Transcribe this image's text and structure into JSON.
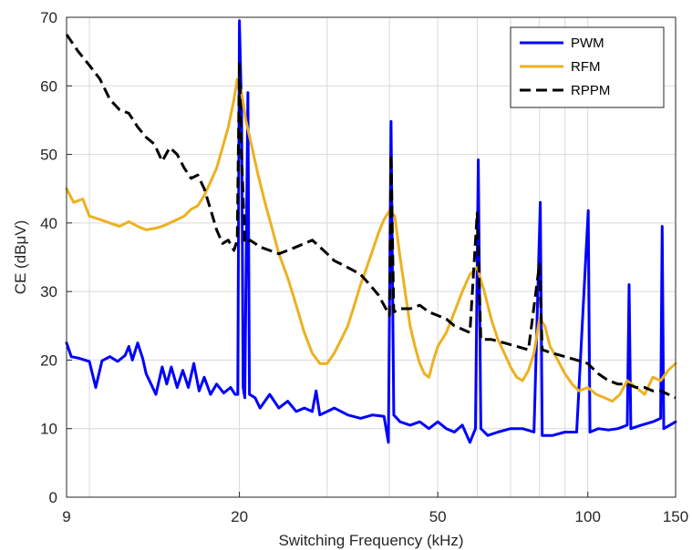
{
  "chart_data": {
    "type": "line",
    "xlabel": "Switching Frequency (kHz)",
    "ylabel": "CE (dBμV)",
    "x_scale": "log",
    "xlim": [
      9,
      150
    ],
    "ylim": [
      0,
      70
    ],
    "x_ticks": [
      9,
      20,
      50,
      100,
      150
    ],
    "x_tick_labels": [
      "9",
      "20",
      "50",
      "100",
      "150"
    ],
    "y_ticks": [
      0,
      10,
      20,
      30,
      40,
      50,
      60,
      70
    ],
    "y_tick_labels": [
      "0",
      "10",
      "20",
      "30",
      "40",
      "50",
      "60",
      "70"
    ],
    "grid": true,
    "legend_position": "top-right",
    "series": [
      {
        "name": "PWM",
        "color": "#0000ff",
        "style": "solid",
        "points": [
          [
            9,
            22.5
          ],
          [
            9.2,
            20.5
          ],
          [
            9.5,
            20.3
          ],
          [
            10,
            19.8
          ],
          [
            10.3,
            16
          ],
          [
            10.6,
            19.9
          ],
          [
            11,
            20.5
          ],
          [
            11.4,
            19.8
          ],
          [
            11.8,
            20.7
          ],
          [
            12,
            22
          ],
          [
            12.2,
            20
          ],
          [
            12.5,
            22.5
          ],
          [
            12.8,
            20.2
          ],
          [
            13,
            18
          ],
          [
            13.3,
            16.5
          ],
          [
            13.6,
            15
          ],
          [
            14,
            19
          ],
          [
            14.3,
            16.5
          ],
          [
            14.6,
            19
          ],
          [
            15,
            16
          ],
          [
            15.4,
            18.5
          ],
          [
            15.8,
            16
          ],
          [
            16.2,
            19.5
          ],
          [
            16.6,
            15.5
          ],
          [
            17,
            17.5
          ],
          [
            17.5,
            15
          ],
          [
            18,
            16.5
          ],
          [
            18.6,
            15.2
          ],
          [
            19.2,
            16
          ],
          [
            19.6,
            15
          ],
          [
            19.85,
            15
          ],
          [
            20,
            69.5
          ],
          [
            20.2,
            56
          ],
          [
            20.35,
            16
          ],
          [
            20.5,
            14.5
          ],
          [
            20.8,
            59
          ],
          [
            20.95,
            15
          ],
          [
            21.5,
            14.5
          ],
          [
            22,
            13
          ],
          [
            23,
            15
          ],
          [
            24,
            13
          ],
          [
            25,
            14
          ],
          [
            26,
            12.5
          ],
          [
            27,
            13
          ],
          [
            28,
            12.5
          ],
          [
            28.5,
            15.5
          ],
          [
            29,
            12
          ],
          [
            30,
            12.5
          ],
          [
            31,
            13
          ],
          [
            33,
            12
          ],
          [
            35,
            11.5
          ],
          [
            37,
            12
          ],
          [
            39,
            11.8
          ],
          [
            39.8,
            8
          ],
          [
            40.3,
            54.8
          ],
          [
            40.8,
            12
          ],
          [
            42,
            11
          ],
          [
            44,
            10.5
          ],
          [
            46,
            11
          ],
          [
            48,
            10
          ],
          [
            50,
            11
          ],
          [
            52,
            10
          ],
          [
            54,
            9.5
          ],
          [
            56,
            10.5
          ],
          [
            58,
            8
          ],
          [
            59.5,
            10
          ],
          [
            60.3,
            49.2
          ],
          [
            61,
            10
          ],
          [
            63,
            9
          ],
          [
            66,
            9.5
          ],
          [
            70,
            10
          ],
          [
            74,
            10
          ],
          [
            78,
            9.5
          ],
          [
            80.3,
            43
          ],
          [
            81,
            9
          ],
          [
            85,
            9
          ],
          [
            90,
            9.5
          ],
          [
            95,
            9.5
          ],
          [
            100.2,
            41.8
          ],
          [
            101,
            9.5
          ],
          [
            105,
            10
          ],
          [
            110,
            9.8
          ],
          [
            115,
            10
          ],
          [
            120,
            10.5
          ],
          [
            121,
            31
          ],
          [
            122,
            10
          ],
          [
            128,
            10.5
          ],
          [
            135,
            11
          ],
          [
            140,
            11.5
          ],
          [
            141,
            39.5
          ],
          [
            142,
            10
          ],
          [
            146,
            10.5
          ],
          [
            150,
            11
          ]
        ]
      },
      {
        "name": "RFM",
        "color": "#edb120",
        "style": "solid",
        "points": [
          [
            9,
            45
          ],
          [
            9.3,
            43
          ],
          [
            9.7,
            43.5
          ],
          [
            10,
            41
          ],
          [
            10.5,
            40.5
          ],
          [
            11,
            40
          ],
          [
            11.5,
            39.5
          ],
          [
            12,
            40.2
          ],
          [
            12.5,
            39.5
          ],
          [
            13,
            39
          ],
          [
            13.5,
            39.2
          ],
          [
            14,
            39.5
          ],
          [
            14.5,
            40
          ],
          [
            15,
            40.5
          ],
          [
            15.5,
            41
          ],
          [
            16,
            42
          ],
          [
            16.5,
            42.5
          ],
          [
            17,
            44
          ],
          [
            17.5,
            46
          ],
          [
            18,
            48
          ],
          [
            18.5,
            51
          ],
          [
            19,
            54
          ],
          [
            19.5,
            58
          ],
          [
            19.8,
            61
          ],
          [
            20.2,
            59
          ],
          [
            20.6,
            55
          ],
          [
            21.2,
            51
          ],
          [
            21.8,
            47
          ],
          [
            22.5,
            43
          ],
          [
            23.2,
            39.5
          ],
          [
            24,
            35.5
          ],
          [
            25,
            32
          ],
          [
            26,
            28
          ],
          [
            27,
            24
          ],
          [
            28,
            21
          ],
          [
            29,
            19.5
          ],
          [
            30,
            19.5
          ],
          [
            31,
            21
          ],
          [
            32,
            23
          ],
          [
            33,
            25
          ],
          [
            34,
            28
          ],
          [
            35,
            31
          ],
          [
            36,
            33.5
          ],
          [
            37,
            36
          ],
          [
            38,
            38.5
          ],
          [
            39,
            40.5
          ],
          [
            40,
            41.8
          ],
          [
            41,
            41
          ],
          [
            42,
            35
          ],
          [
            43,
            30
          ],
          [
            44,
            25
          ],
          [
            45,
            22
          ],
          [
            46,
            19.5
          ],
          [
            47,
            18
          ],
          [
            48,
            17.5
          ],
          [
            49,
            20
          ],
          [
            50,
            22
          ],
          [
            52,
            24
          ],
          [
            54,
            27
          ],
          [
            56,
            30
          ],
          [
            58,
            32.5
          ],
          [
            60,
            33.5
          ],
          [
            62,
            30
          ],
          [
            64,
            26
          ],
          [
            66,
            23
          ],
          [
            68,
            21
          ],
          [
            70,
            19
          ],
          [
            72,
            17.5
          ],
          [
            74,
            17
          ],
          [
            76,
            18.5
          ],
          [
            78,
            21
          ],
          [
            80,
            26
          ],
          [
            82,
            25
          ],
          [
            84,
            22
          ],
          [
            87,
            20
          ],
          [
            90,
            18
          ],
          [
            93,
            16.5
          ],
          [
            96,
            15.5
          ],
          [
            100,
            16
          ],
          [
            104,
            15
          ],
          [
            108,
            14.5
          ],
          [
            112,
            14
          ],
          [
            116,
            15
          ],
          [
            120,
            17
          ],
          [
            125,
            16
          ],
          [
            130,
            15
          ],
          [
            135,
            17.5
          ],
          [
            140,
            17
          ],
          [
            145,
            18.5
          ],
          [
            150,
            19.5
          ]
        ]
      },
      {
        "name": "RPPM",
        "color": "#000000",
        "style": "dashed",
        "points": [
          [
            9,
            67.5
          ],
          [
            9.5,
            65
          ],
          [
            10,
            63
          ],
          [
            10.5,
            61
          ],
          [
            11,
            58
          ],
          [
            11.5,
            56.5
          ],
          [
            12,
            56
          ],
          [
            12.5,
            54
          ],
          [
            13,
            52.5
          ],
          [
            13.5,
            51.5
          ],
          [
            14,
            49
          ],
          [
            14.5,
            51
          ],
          [
            15,
            50
          ],
          [
            15.5,
            48
          ],
          [
            16,
            46.5
          ],
          [
            16.5,
            47
          ],
          [
            17,
            45
          ],
          [
            17.5,
            42
          ],
          [
            18,
            39
          ],
          [
            18.5,
            37
          ],
          [
            19,
            37.5
          ],
          [
            19.5,
            36
          ],
          [
            19.8,
            37.5
          ],
          [
            20,
            63.5
          ],
          [
            20.2,
            50
          ],
          [
            20.5,
            37
          ],
          [
            21,
            37.5
          ],
          [
            21.5,
            37
          ],
          [
            22,
            36.5
          ],
          [
            23,
            36
          ],
          [
            24,
            35.5
          ],
          [
            25,
            36
          ],
          [
            26,
            36.5
          ],
          [
            27,
            37
          ],
          [
            28,
            37.5
          ],
          [
            29,
            36.5
          ],
          [
            30,
            35.5
          ],
          [
            31,
            34.5
          ],
          [
            32,
            34
          ],
          [
            33,
            33.5
          ],
          [
            34,
            33
          ],
          [
            35,
            32.5
          ],
          [
            36,
            31.5
          ],
          [
            37,
            30.5
          ],
          [
            38,
            29.5
          ],
          [
            39,
            28
          ],
          [
            40,
            26.5
          ],
          [
            40.3,
            50
          ],
          [
            40.8,
            27
          ],
          [
            42,
            27.5
          ],
          [
            44,
            27.5
          ],
          [
            46,
            28
          ],
          [
            48,
            27
          ],
          [
            50,
            26.5
          ],
          [
            52,
            26
          ],
          [
            54,
            25
          ],
          [
            56,
            24.5
          ],
          [
            58,
            24
          ],
          [
            60,
            41.5
          ],
          [
            61,
            23
          ],
          [
            64,
            23
          ],
          [
            68,
            22.5
          ],
          [
            72,
            22
          ],
          [
            76,
            21.5
          ],
          [
            80,
            34
          ],
          [
            81,
            21.5
          ],
          [
            85,
            21
          ],
          [
            90,
            20.5
          ],
          [
            95,
            20
          ],
          [
            100,
            19.5
          ],
          [
            105,
            18
          ],
          [
            110,
            17
          ],
          [
            115,
            16.5
          ],
          [
            120,
            16.5
          ],
          [
            125,
            16
          ],
          [
            130,
            16
          ],
          [
            135,
            15.5
          ],
          [
            140,
            15.5
          ],
          [
            145,
            15
          ],
          [
            150,
            14.5
          ]
        ]
      }
    ]
  }
}
